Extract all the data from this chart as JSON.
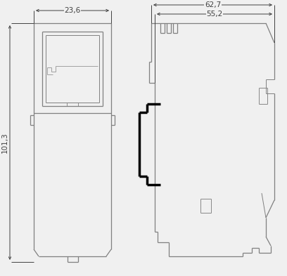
{
  "bg_color": "#f0f0f0",
  "line_color": "#808080",
  "dim_color": "#404040",
  "black": "#000000",
  "white": "#f0f0f0",
  "dim_23_6": "23,6",
  "dim_101_3": "101,3",
  "dim_62_7": "62,7",
  "dim_55_2": "55,2",
  "figsize": [
    4.08,
    3.93
  ],
  "dpi": 100,
  "lw_main": 0.9,
  "lw_dim": 0.7,
  "lw_din": 2.5,
  "fontsize": 7.5
}
